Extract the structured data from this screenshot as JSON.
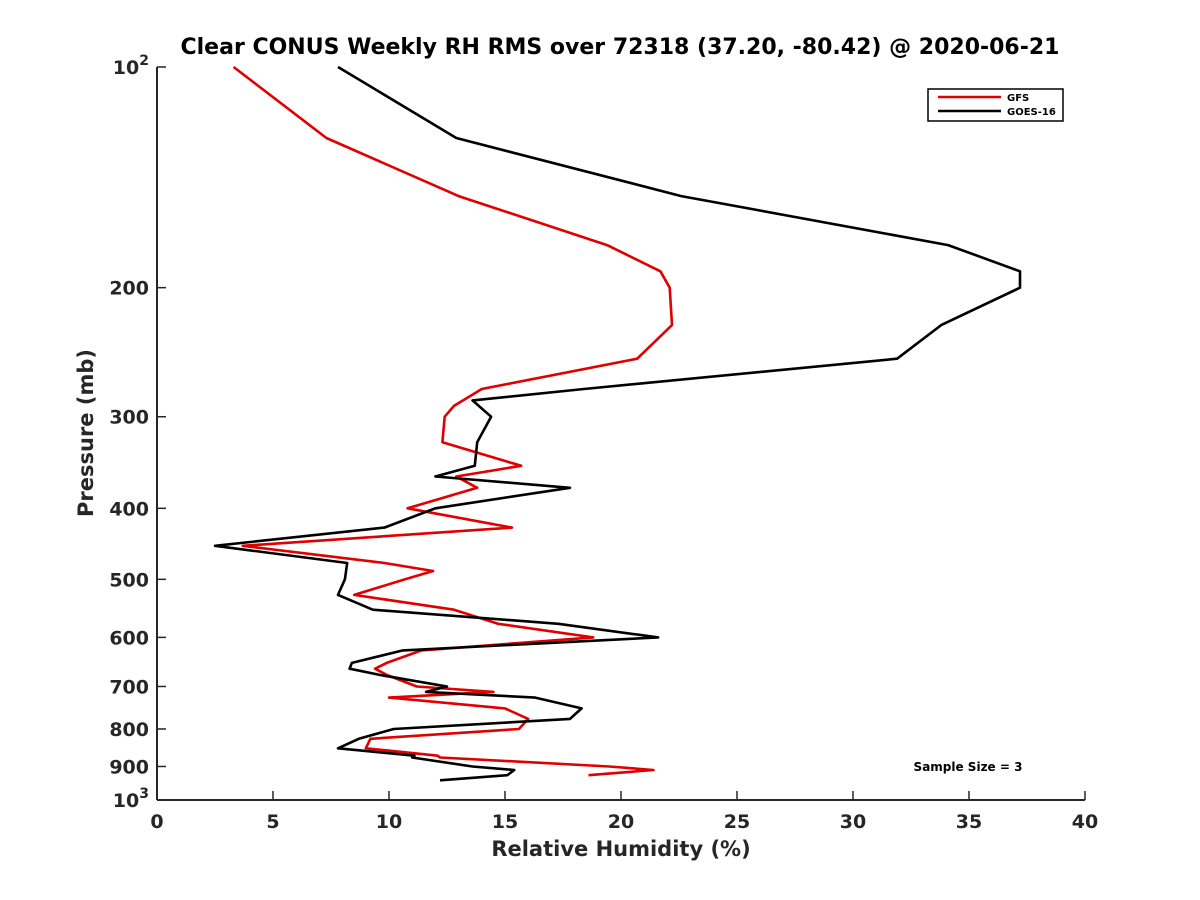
{
  "chart_data": {
    "type": "line",
    "title": "Clear CONUS Weekly RH RMS over 72318 (37.20, -80.42) @ 2020-06-21",
    "xlabel": "Relative Humidity (%)",
    "ylabel": "Pressure (mb)",
    "xlim": [
      0,
      40
    ],
    "ylim": [
      100,
      1000
    ],
    "y_scale": "log",
    "y_reversed": true,
    "grid": false,
    "legend_placement": "top-right",
    "x_ticks": [
      0,
      5,
      10,
      15,
      20,
      25,
      30,
      35,
      40
    ],
    "y_ticks": [
      100,
      200,
      300,
      400,
      500,
      600,
      700,
      800,
      900,
      1000
    ],
    "y_tick_labels": [
      {
        "base": "10",
        "exp": "2"
      },
      {
        "base": "200",
        "exp": ""
      },
      {
        "base": "300",
        "exp": ""
      },
      {
        "base": "400",
        "exp": ""
      },
      {
        "base": "500",
        "exp": ""
      },
      {
        "base": "600",
        "exp": ""
      },
      {
        "base": "700",
        "exp": ""
      },
      {
        "base": "800",
        "exp": ""
      },
      {
        "base": "900",
        "exp": ""
      },
      {
        "base": "10",
        "exp": "3"
      }
    ],
    "annotation": "Sample Size = 3",
    "series": [
      {
        "name": "GFS",
        "color": "#e00000",
        "points": [
          [
            3.3,
            100
          ],
          [
            7.3,
            125
          ],
          [
            13.0,
            150
          ],
          [
            19.4,
            175
          ],
          [
            21.7,
            190
          ],
          [
            22.1,
            200
          ],
          [
            22.2,
            225
          ],
          [
            20.7,
            250
          ],
          [
            14.0,
            275
          ],
          [
            12.8,
            290
          ],
          [
            12.4,
            300
          ],
          [
            12.3,
            325
          ],
          [
            15.7,
            350
          ],
          [
            12.9,
            362
          ],
          [
            13.8,
            375
          ],
          [
            10.8,
            400
          ],
          [
            15.3,
            425
          ],
          [
            3.7,
            450
          ],
          [
            9.8,
            475
          ],
          [
            11.9,
            487
          ],
          [
            10.7,
            500
          ],
          [
            8.5,
            525
          ],
          [
            12.8,
            550
          ],
          [
            14.7,
            575
          ],
          [
            18.8,
            600
          ],
          [
            11.4,
            625
          ],
          [
            9.9,
            650
          ],
          [
            9.4,
            662
          ],
          [
            9.9,
            675
          ],
          [
            11.2,
            700
          ],
          [
            14.5,
            712
          ],
          [
            10.0,
            725
          ],
          [
            15.0,
            750
          ],
          [
            16.0,
            775
          ],
          [
            15.6,
            800
          ],
          [
            9.2,
            825
          ],
          [
            9.0,
            850
          ],
          [
            12.1,
            870
          ],
          [
            12.2,
            875
          ],
          [
            19.5,
            900
          ],
          [
            21.4,
            910
          ],
          [
            18.6,
            925
          ]
        ]
      },
      {
        "name": "GOES-16",
        "color": "#000000",
        "points": [
          [
            7.8,
            100
          ],
          [
            12.9,
            125
          ],
          [
            22.6,
            150
          ],
          [
            34.1,
            175
          ],
          [
            37.2,
            190
          ],
          [
            37.2,
            200
          ],
          [
            33.8,
            225
          ],
          [
            31.9,
            250
          ],
          [
            18.4,
            275
          ],
          [
            13.6,
            285
          ],
          [
            14.4,
            300
          ],
          [
            13.8,
            325
          ],
          [
            13.7,
            350
          ],
          [
            12.0,
            362
          ],
          [
            17.8,
            375
          ],
          [
            12.0,
            400
          ],
          [
            9.8,
            425
          ],
          [
            2.5,
            450
          ],
          [
            8.2,
            475
          ],
          [
            8.1,
            500
          ],
          [
            7.8,
            525
          ],
          [
            9.3,
            550
          ],
          [
            17.3,
            575
          ],
          [
            21.6,
            600
          ],
          [
            10.6,
            625
          ],
          [
            8.4,
            650
          ],
          [
            8.3,
            662
          ],
          [
            9.6,
            675
          ],
          [
            12.5,
            700
          ],
          [
            11.6,
            712
          ],
          [
            16.3,
            725
          ],
          [
            18.3,
            750
          ],
          [
            17.8,
            775
          ],
          [
            10.2,
            800
          ],
          [
            8.7,
            825
          ],
          [
            7.8,
            850
          ],
          [
            11.1,
            870
          ],
          [
            11.0,
            875
          ],
          [
            13.6,
            900
          ],
          [
            15.4,
            910
          ],
          [
            15.1,
            925
          ],
          [
            12.2,
            940
          ]
        ]
      }
    ]
  }
}
